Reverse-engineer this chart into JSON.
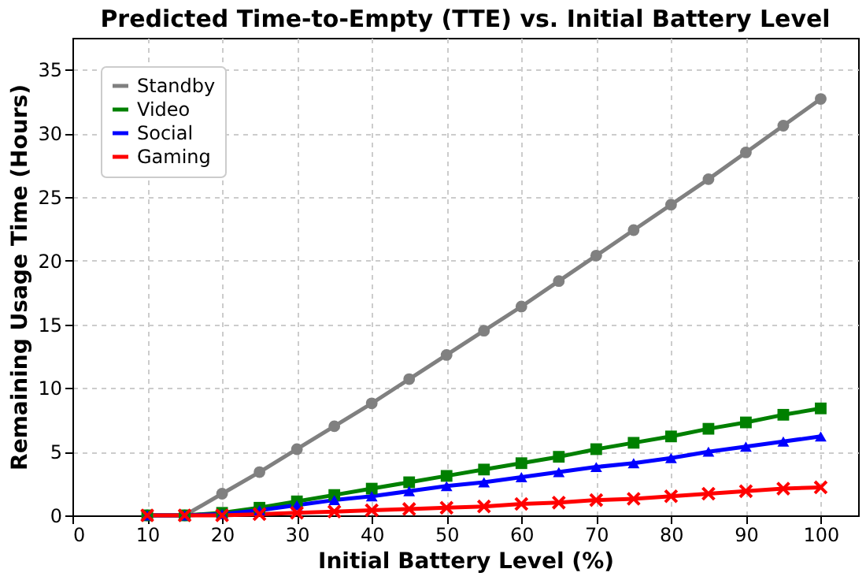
{
  "chart_data": {
    "type": "line",
    "title": "Predicted Time-to-Empty (TTE) vs. Initial Battery Level",
    "xlabel": "Initial Battery Level (%)",
    "ylabel": "Remaining Usage Time (Hours)",
    "x": [
      10,
      15,
      20,
      25,
      30,
      35,
      40,
      45,
      50,
      55,
      60,
      65,
      70,
      75,
      80,
      85,
      90,
      95,
      100
    ],
    "xlim": [
      0,
      105
    ],
    "xticks": [
      0,
      10,
      20,
      30,
      40,
      50,
      60,
      70,
      80,
      90,
      100
    ],
    "ylim": [
      0,
      37.5
    ],
    "yticks": [
      0,
      5,
      10,
      15,
      20,
      25,
      30,
      35
    ],
    "grid": true,
    "legend": "top left",
    "line_style": "solid",
    "series": [
      {
        "name": "Standby",
        "color": "#808080",
        "marker": "circle",
        "values": [
          0,
          0,
          1.7,
          3.4,
          5.2,
          7.0,
          8.8,
          10.7,
          12.6,
          14.5,
          16.4,
          18.4,
          20.4,
          22.4,
          24.4,
          26.4,
          28.5,
          30.6,
          32.7
        ]
      },
      {
        "name": "Video",
        "color": "#008000",
        "marker": "square",
        "values": [
          0,
          0,
          0.2,
          0.6,
          1.1,
          1.6,
          2.1,
          2.6,
          3.1,
          3.6,
          4.1,
          4.6,
          5.2,
          5.7,
          6.2,
          6.8,
          7.3,
          7.9,
          8.4
        ]
      },
      {
        "name": "Social",
        "color": "#0000ff",
        "marker": "triangle",
        "values": [
          0,
          0,
          0.1,
          0.4,
          0.8,
          1.2,
          1.5,
          1.9,
          2.3,
          2.6,
          3.0,
          3.4,
          3.8,
          4.1,
          4.5,
          5.0,
          5.4,
          5.8,
          6.2
        ]
      },
      {
        "name": "Gaming",
        "color": "#ff0000",
        "marker": "cross",
        "values": [
          0,
          0,
          0,
          0.1,
          0.2,
          0.3,
          0.4,
          0.5,
          0.6,
          0.7,
          0.9,
          1.0,
          1.2,
          1.3,
          1.5,
          1.7,
          1.9,
          2.1,
          2.2
        ]
      }
    ]
  }
}
